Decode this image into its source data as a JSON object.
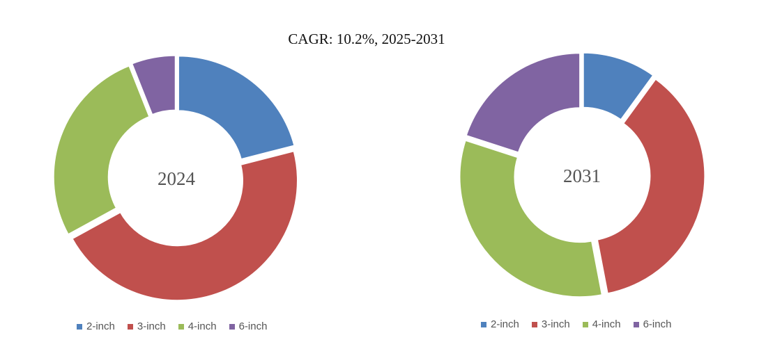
{
  "title": "CAGR:   10.2%, 2025-2031",
  "colors": {
    "2-inch": "#4F81BD",
    "3-inch": "#C0504D",
    "4-inch": "#9BBB59",
    "6-inch": "#8064A2"
  },
  "chart_data": [
    {
      "type": "pie",
      "center_label": "2024",
      "categories": [
        "2-inch",
        "3-inch",
        "4-inch",
        "6-inch"
      ],
      "values": [
        21,
        46,
        27,
        6
      ],
      "legend": [
        "2-inch",
        "3-inch",
        "4-inch",
        "6-inch"
      ],
      "legend_position": "bottom"
    },
    {
      "type": "pie",
      "center_label": "2031",
      "categories": [
        "2-inch",
        "3-inch",
        "4-inch",
        "6-inch"
      ],
      "values": [
        10,
        37,
        33,
        20
      ],
      "legend": [
        "2-inch",
        "3-inch",
        "4-inch",
        "6-inch"
      ],
      "legend_position": "bottom"
    }
  ]
}
